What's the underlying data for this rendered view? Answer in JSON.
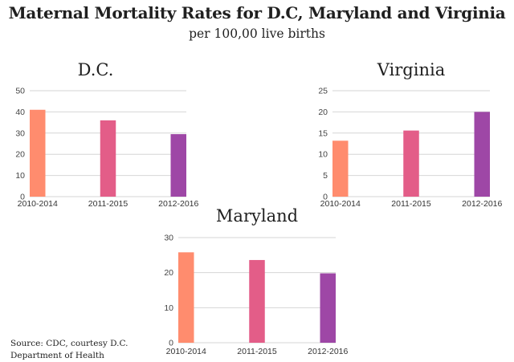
{
  "header": {
    "title": "Maternal Mortality Rates for D.C, Maryland and Virginia",
    "subtitle": "per 100,00 live births"
  },
  "footer": {
    "source_line1": "Source: CDC, courtesy D.C.",
    "source_line2": "Department of Health"
  },
  "colors": {
    "2010-2014": "#FF8C6E",
    "2011-2015": "#E35D88",
    "2012-2016": "#9E47A6",
    "grid": "#d6d6d6"
  },
  "chart_data": [
    {
      "id": "dc",
      "type": "bar",
      "title": "D.C.",
      "xlabel": "",
      "ylabel": "",
      "categories": [
        "2010-2014",
        "2011-2015",
        "2012-2016"
      ],
      "values": [
        41,
        36,
        29.5
      ],
      "ylim": [
        0,
        50
      ],
      "yticks": [
        0,
        10,
        20,
        30,
        40,
        50
      ],
      "grid": true,
      "legend": "none"
    },
    {
      "id": "virginia",
      "type": "bar",
      "title": "Virginia",
      "xlabel": "",
      "ylabel": "",
      "categories": [
        "2010-2014",
        "2011-2015",
        "2012-2016"
      ],
      "values": [
        13.2,
        15.6,
        20
      ],
      "ylim": [
        0,
        25
      ],
      "yticks": [
        0,
        5,
        10,
        15,
        20,
        25
      ],
      "grid": true,
      "legend": "none"
    },
    {
      "id": "maryland",
      "type": "bar",
      "title": "Maryland",
      "xlabel": "",
      "ylabel": "",
      "categories": [
        "2010-2014",
        "2011-2015",
        "2012-2016"
      ],
      "values": [
        25.8,
        23.6,
        19.8
      ],
      "ylim": [
        0,
        30
      ],
      "yticks": [
        0,
        10,
        20,
        30
      ],
      "grid": true,
      "legend": "none"
    }
  ]
}
